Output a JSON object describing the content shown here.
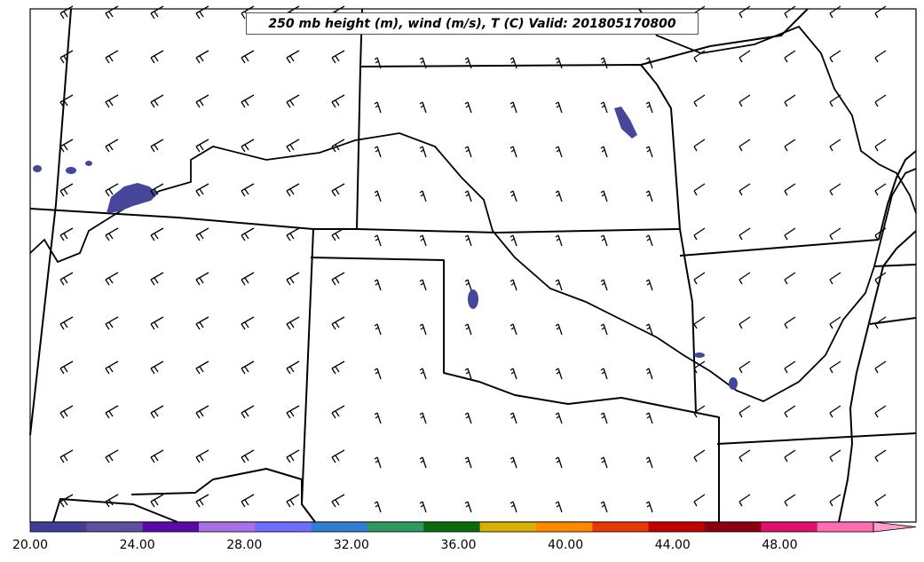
{
  "title": "250 mb height (m), wind (m/s), T (C) Valid: 201805170800",
  "colorbar": {
    "tick_labels": [
      "20.00",
      "24.00",
      "28.00",
      "32.00",
      "36.00",
      "40.00",
      "44.00",
      "48.00"
    ],
    "colors": [
      "#3f3f96",
      "#5f4f9f",
      "#5a0aa8",
      "#aa70e6",
      "#6e6eff",
      "#2e7fcf",
      "#2e9860",
      "#0b6a0b",
      "#d8b000",
      "#ff8a00",
      "#e83a00",
      "#c40000",
      "#8a0010",
      "#e0106c",
      "#ff6eb0"
    ],
    "extend_color": "#ff9ec9",
    "min": 20,
    "max": 51.5
  },
  "precip_color": "#46469a"
}
